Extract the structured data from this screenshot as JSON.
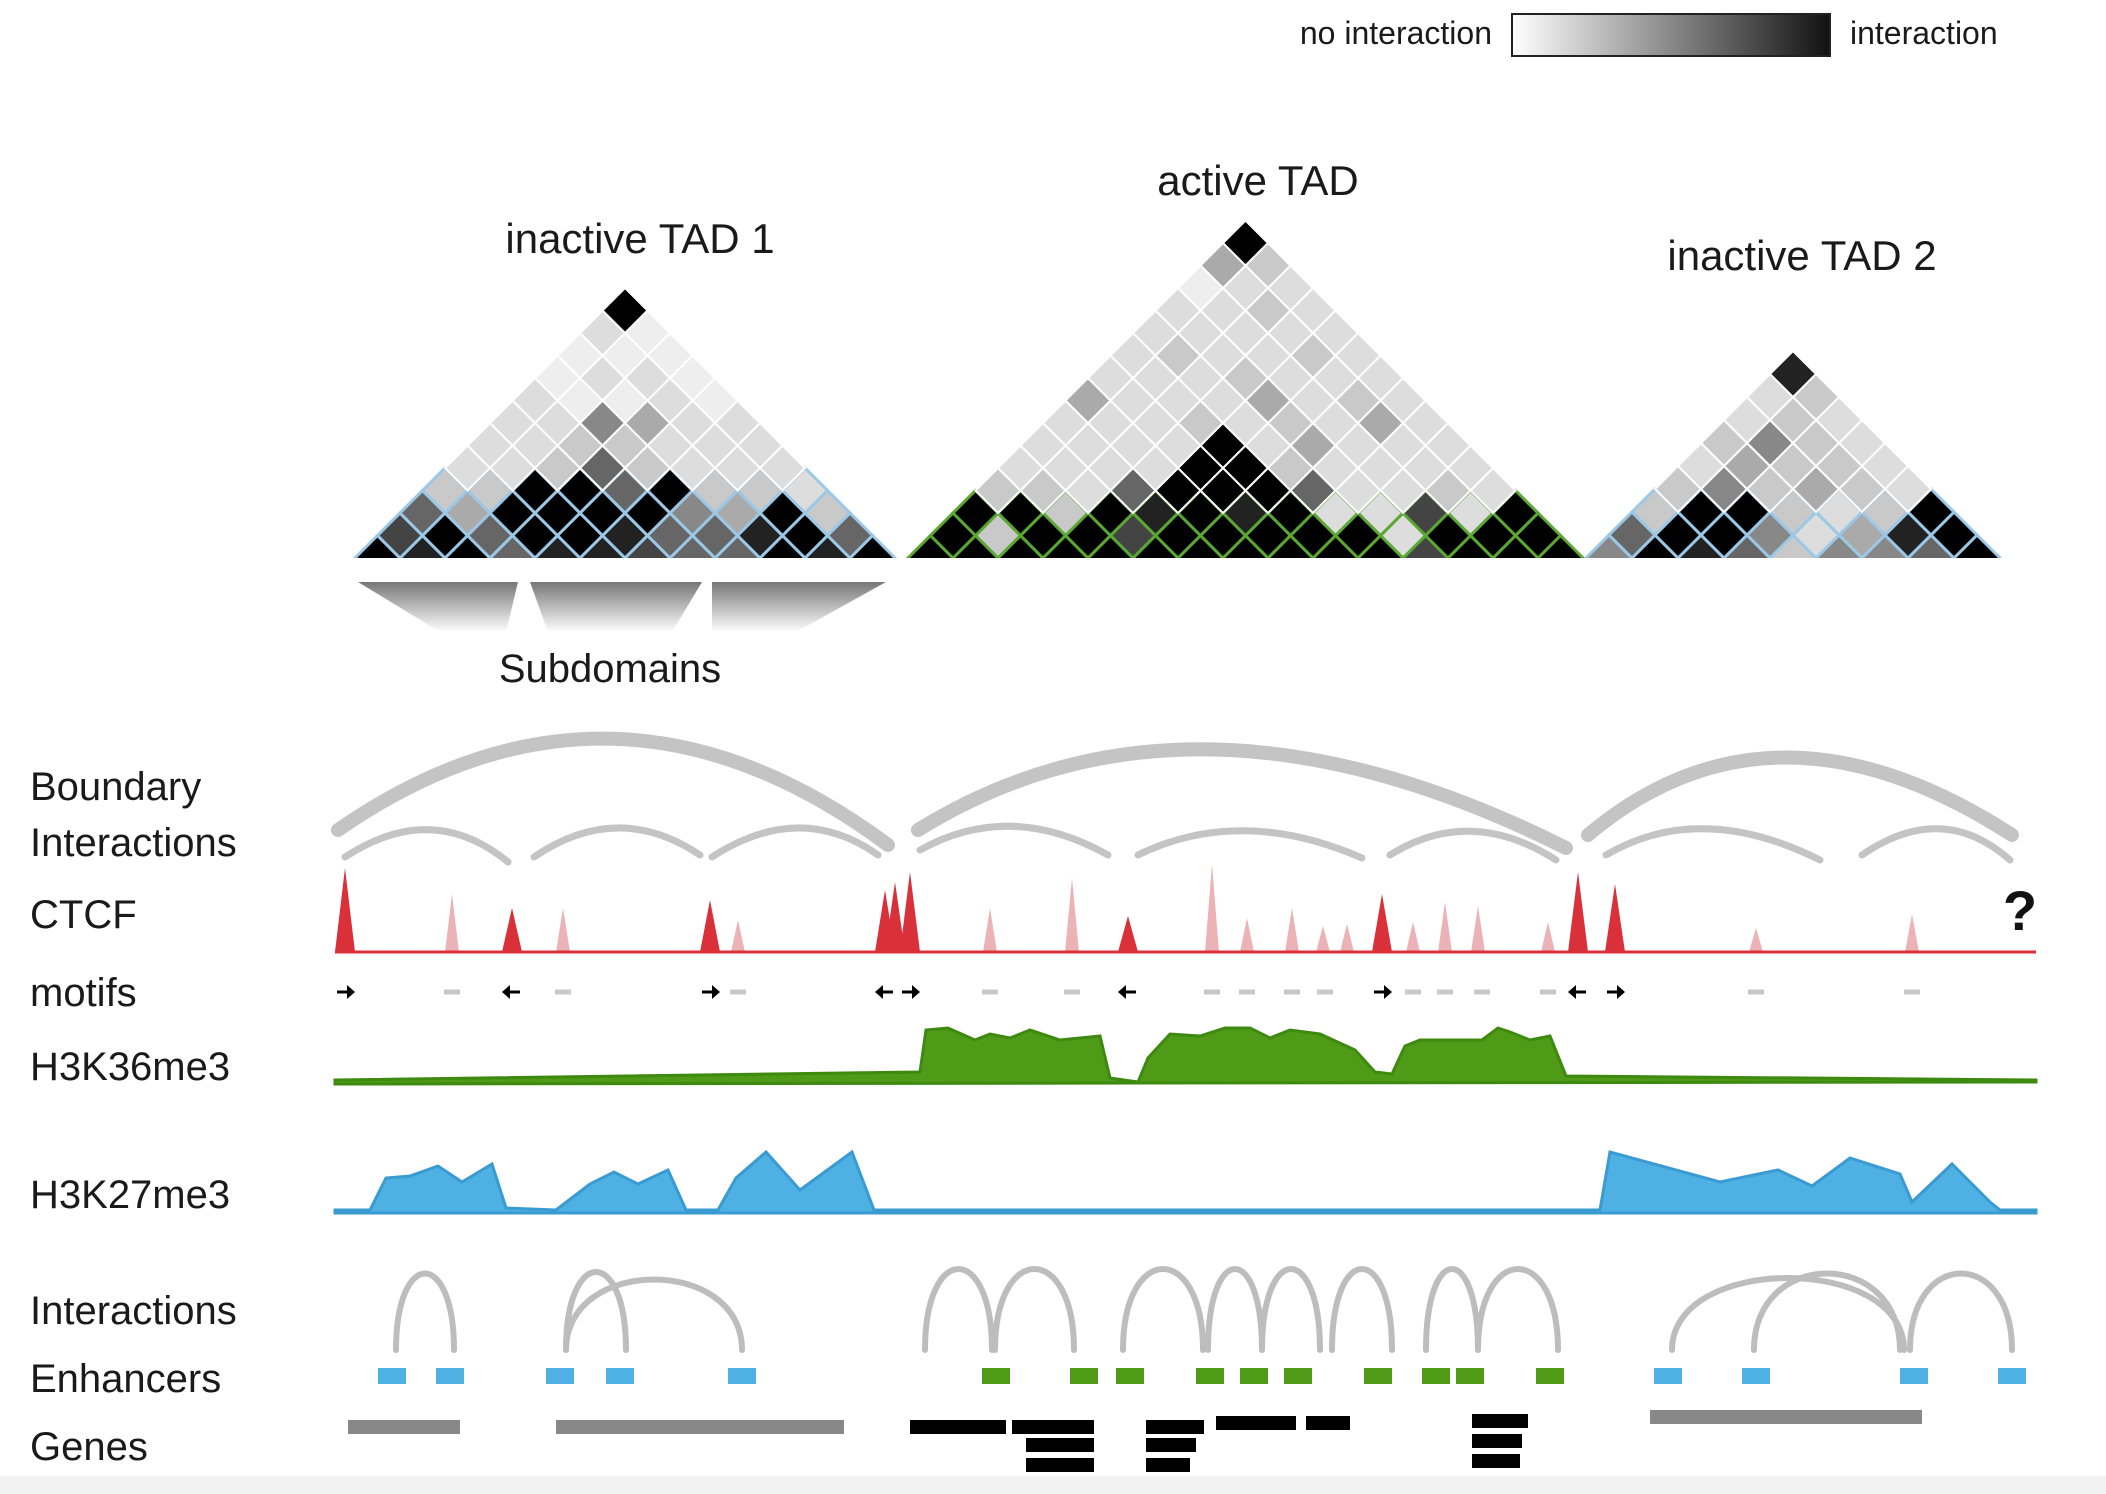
{
  "legend": {
    "low_label": "no interaction",
    "high_label": "interaction"
  },
  "tads": [
    {
      "title": "inactive TAD 1",
      "type": "inactive"
    },
    {
      "title": "active TAD",
      "type": "active"
    },
    {
      "title": "inactive TAD 2",
      "type": "inactive"
    }
  ],
  "subdomains_label": "Subdomains",
  "tracks": {
    "boundary_interactions": "Boundary\nInteractions",
    "ctcf": "CTCF",
    "motifs": "motifs",
    "h3k36me3": "H3K36me3",
    "h3k27me3": "H3K27me3",
    "interactions": "Interactions",
    "enhancers": "Enhancers",
    "genes": "Genes"
  },
  "unknown_mark": "?",
  "colors": {
    "ctcf": "#d9303a",
    "ctcf_weak": "#ecb3b6",
    "h3k36me3": "#4f9a17",
    "h3k27me3": "#4fb0e3",
    "active_outline": "#5aa832",
    "inactive_outline": "#9cc8e8",
    "arc": "#bdbdbd",
    "gene_active": "#000000",
    "gene_inactive": "#888888"
  }
}
